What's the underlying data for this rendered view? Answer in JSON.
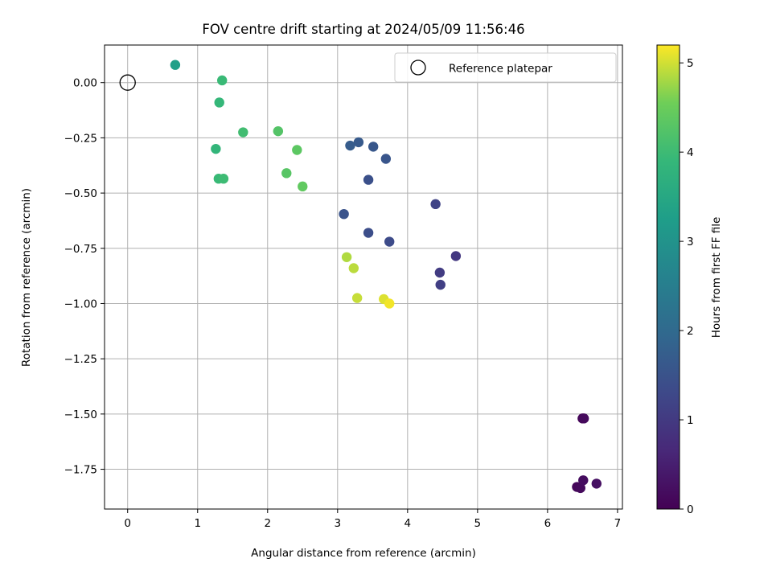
{
  "chart_data": {
    "type": "scatter",
    "title": "FOV centre drift starting at 2024/05/09 11:56:46",
    "xlabel": "Angular distance from reference (arcmin)",
    "ylabel": "Rotation from reference (arcmin)",
    "xlim": [
      -0.33,
      7.07
    ],
    "ylim": [
      -1.93,
      0.17
    ],
    "xticks": [
      0,
      1,
      2,
      3,
      4,
      5,
      6,
      7
    ],
    "yticks": [
      0.0,
      -0.25,
      -0.5,
      -0.75,
      -1.0,
      -1.25,
      -1.5,
      -1.75
    ],
    "xtick_labels": [
      "0",
      "1",
      "2",
      "3",
      "4",
      "5",
      "6",
      "7"
    ],
    "ytick_labels": [
      "0.00",
      "−0.25",
      "−0.50",
      "−0.75",
      "−1.00",
      "−1.25",
      "−1.50",
      "−1.75"
    ],
    "grid": true,
    "legend": {
      "position": "upper right",
      "entries": [
        "Reference platepar"
      ]
    },
    "reference_point": {
      "x": 0.0,
      "y": 0.0,
      "label": "Reference platepar"
    },
    "colorbar": {
      "label": "Hours from first FF file",
      "range": [
        0,
        5.2
      ],
      "ticks": [
        0,
        1,
        2,
        3,
        4,
        5
      ],
      "tick_labels": [
        "0",
        "1",
        "2",
        "3",
        "4",
        "5"
      ],
      "colormap": "viridis"
    },
    "points": [
      {
        "x": 6.5,
        "y": -1.52,
        "hours": 0.05
      },
      {
        "x": 6.42,
        "y": -1.83,
        "hours": 0.1
      },
      {
        "x": 6.47,
        "y": -1.835,
        "hours": 0.15
      },
      {
        "x": 6.51,
        "y": -1.8,
        "hours": 0.2
      },
      {
        "x": 6.7,
        "y": -1.815,
        "hours": 0.25
      },
      {
        "x": 6.52,
        "y": -1.52,
        "hours": 0.15
      },
      {
        "x": 4.69,
        "y": -0.785,
        "hours": 0.95
      },
      {
        "x": 4.46,
        "y": -0.86,
        "hours": 1.05
      },
      {
        "x": 4.47,
        "y": -0.915,
        "hours": 1.1
      },
      {
        "x": 4.4,
        "y": -0.55,
        "hours": 1.2
      },
      {
        "x": 3.74,
        "y": -0.72,
        "hours": 1.35
      },
      {
        "x": 3.44,
        "y": -0.68,
        "hours": 1.4
      },
      {
        "x": 3.09,
        "y": -0.595,
        "hours": 1.5
      },
      {
        "x": 3.44,
        "y": -0.44,
        "hours": 1.45
      },
      {
        "x": 3.69,
        "y": -0.345,
        "hours": 1.55
      },
      {
        "x": 3.51,
        "y": -0.29,
        "hours": 1.6
      },
      {
        "x": 3.3,
        "y": -0.27,
        "hours": 1.65
      },
      {
        "x": 3.18,
        "y": -0.285,
        "hours": 1.7
      },
      {
        "x": 0.68,
        "y": 0.08,
        "hours": 3.3
      },
      {
        "x": 1.35,
        "y": 0.01,
        "hours": 3.95
      },
      {
        "x": 1.31,
        "y": -0.09,
        "hours": 3.9
      },
      {
        "x": 1.26,
        "y": -0.3,
        "hours": 3.85
      },
      {
        "x": 1.3,
        "y": -0.435,
        "hours": 3.95
      },
      {
        "x": 1.37,
        "y": -0.435,
        "hours": 4.0
      },
      {
        "x": 1.65,
        "y": -0.225,
        "hours": 4.05
      },
      {
        "x": 2.15,
        "y": -0.22,
        "hours": 4.25
      },
      {
        "x": 2.42,
        "y": -0.305,
        "hours": 4.35
      },
      {
        "x": 2.27,
        "y": -0.41,
        "hours": 4.3
      },
      {
        "x": 2.5,
        "y": -0.47,
        "hours": 4.4
      },
      {
        "x": 3.13,
        "y": -0.79,
        "hours": 4.85
      },
      {
        "x": 3.23,
        "y": -0.84,
        "hours": 4.9
      },
      {
        "x": 3.28,
        "y": -0.975,
        "hours": 4.95
      },
      {
        "x": 3.66,
        "y": -0.98,
        "hours": 5.05
      },
      {
        "x": 3.74,
        "y": -1.0,
        "hours": 5.15
      }
    ]
  }
}
